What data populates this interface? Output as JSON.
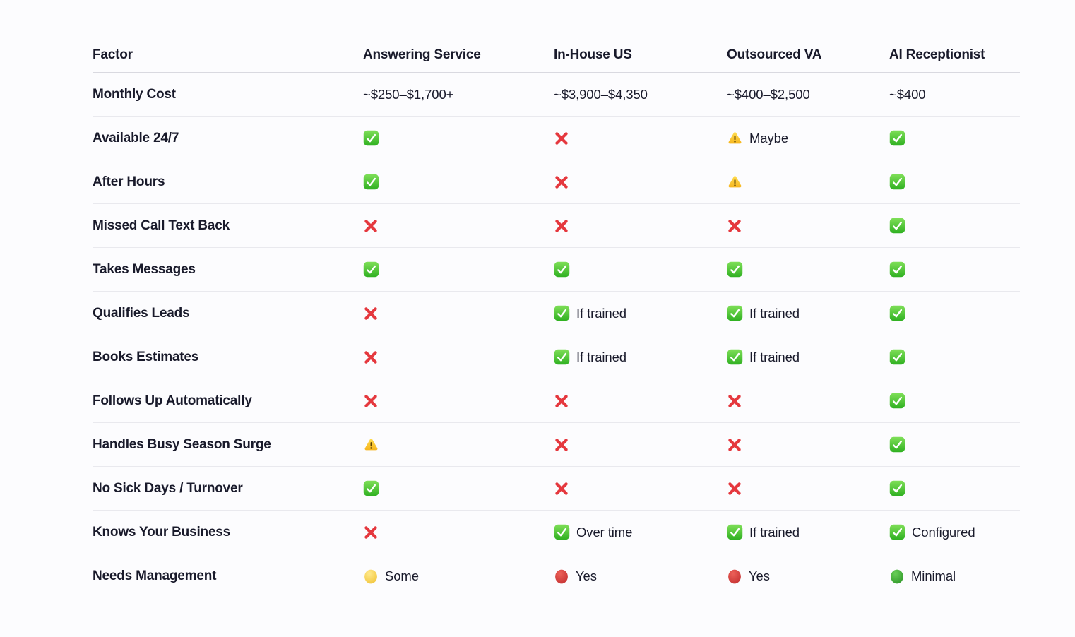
{
  "table": {
    "columns": [
      "Factor",
      "Answering Service",
      "In-House US",
      "Outsourced VA",
      "AI Receptionist"
    ],
    "rows": [
      {
        "factor": "Monthly Cost",
        "cells": [
          {
            "text": "~$250–$1,700+"
          },
          {
            "text": "~$3,900–$4,350"
          },
          {
            "text": "~$400–$2,500"
          },
          {
            "text": "~$400"
          }
        ]
      },
      {
        "factor": "Available 24/7",
        "cells": [
          {
            "icon": "check"
          },
          {
            "icon": "cross"
          },
          {
            "icon": "warn",
            "text": "Maybe"
          },
          {
            "icon": "check"
          }
        ]
      },
      {
        "factor": "After Hours",
        "cells": [
          {
            "icon": "check"
          },
          {
            "icon": "cross"
          },
          {
            "icon": "warn"
          },
          {
            "icon": "check"
          }
        ]
      },
      {
        "factor": "Missed Call Text Back",
        "cells": [
          {
            "icon": "cross"
          },
          {
            "icon": "cross"
          },
          {
            "icon": "cross"
          },
          {
            "icon": "check"
          }
        ]
      },
      {
        "factor": "Takes Messages",
        "cells": [
          {
            "icon": "check"
          },
          {
            "icon": "check"
          },
          {
            "icon": "check"
          },
          {
            "icon": "check"
          }
        ]
      },
      {
        "factor": "Qualifies Leads",
        "cells": [
          {
            "icon": "cross"
          },
          {
            "icon": "check",
            "text": "If trained"
          },
          {
            "icon": "check",
            "text": "If trained"
          },
          {
            "icon": "check"
          }
        ]
      },
      {
        "factor": "Books Estimates",
        "cells": [
          {
            "icon": "cross"
          },
          {
            "icon": "check",
            "text": "If trained"
          },
          {
            "icon": "check",
            "text": "If trained"
          },
          {
            "icon": "check"
          }
        ]
      },
      {
        "factor": "Follows Up Automatically",
        "cells": [
          {
            "icon": "cross"
          },
          {
            "icon": "cross"
          },
          {
            "icon": "cross"
          },
          {
            "icon": "check"
          }
        ]
      },
      {
        "factor": "Handles Busy Season Surge",
        "cells": [
          {
            "icon": "warn"
          },
          {
            "icon": "cross"
          },
          {
            "icon": "cross"
          },
          {
            "icon": "check"
          }
        ]
      },
      {
        "factor": "No Sick Days / Turnover",
        "cells": [
          {
            "icon": "check"
          },
          {
            "icon": "cross"
          },
          {
            "icon": "cross"
          },
          {
            "icon": "check"
          }
        ]
      },
      {
        "factor": "Knows Your Business",
        "cells": [
          {
            "icon": "cross"
          },
          {
            "icon": "check",
            "text": "Over time"
          },
          {
            "icon": "check",
            "text": "If trained"
          },
          {
            "icon": "check",
            "text": "Configured"
          }
        ]
      },
      {
        "factor": "Needs Management",
        "cells": [
          {
            "icon": "dot_yellow",
            "text": "Some"
          },
          {
            "icon": "dot_red",
            "text": "Yes"
          },
          {
            "icon": "dot_red",
            "text": "Yes"
          },
          {
            "icon": "dot_green",
            "text": "Minimal"
          }
        ]
      }
    ]
  },
  "icon_legend": {
    "check": "green-check-icon",
    "cross": "red-cross-icon",
    "warn": "warning-icon",
    "dot_yellow": "yellow-dot-icon",
    "dot_red": "red-dot-icon",
    "dot_green": "green-dot-icon"
  },
  "colors": {
    "text": "#191a2b",
    "row_divider": "#e9e9ee",
    "header_divider": "#d9d9e0",
    "page_bg": "#fcfcfe",
    "check_green": "#3db42d",
    "cross_red": "#e5383e",
    "warn_yellow": "#fbc929",
    "dot_yellow": "#f6cd3f",
    "dot_red": "#d63b3e",
    "dot_green": "#36a338"
  }
}
